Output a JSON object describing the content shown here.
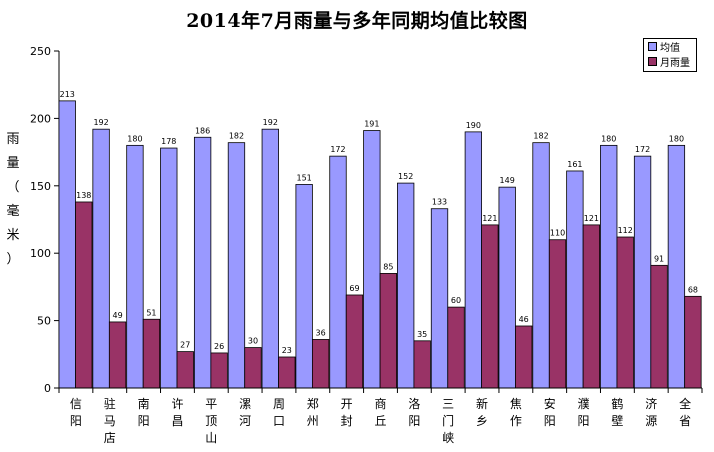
{
  "chart_data": {
    "type": "bar",
    "title": "2014年7月雨量与多年同期均值比较图",
    "ylabel": [
      "雨",
      "量",
      "（",
      "毫",
      "米",
      "）"
    ],
    "ylim": [
      0,
      250
    ],
    "yticks": [
      0,
      50,
      100,
      150,
      200,
      250
    ],
    "categories": [
      "信阳",
      "驻马店",
      "南阳",
      "许昌",
      "平顶山",
      "漯河",
      "周口",
      "郑州",
      "开封",
      "商丘",
      "洛阳",
      "三门峡",
      "新乡",
      "焦作",
      "安阳",
      "濮阳",
      "鹤壁",
      "济源",
      "全省"
    ],
    "series": [
      {
        "name": "均值",
        "color": "#9999ff",
        "values": [
          213,
          192,
          180,
          178,
          186,
          182,
          192,
          151,
          172,
          191,
          152,
          133,
          190,
          149,
          182,
          161,
          180,
          172,
          180
        ]
      },
      {
        "name": "月雨量",
        "color": "#993366",
        "values": [
          138,
          49,
          51,
          27,
          26,
          30,
          23,
          36,
          69,
          85,
          35,
          60,
          121,
          46,
          110,
          121,
          112,
          91,
          68
        ]
      }
    ],
    "legend_position": "top-right",
    "grid": false
  }
}
